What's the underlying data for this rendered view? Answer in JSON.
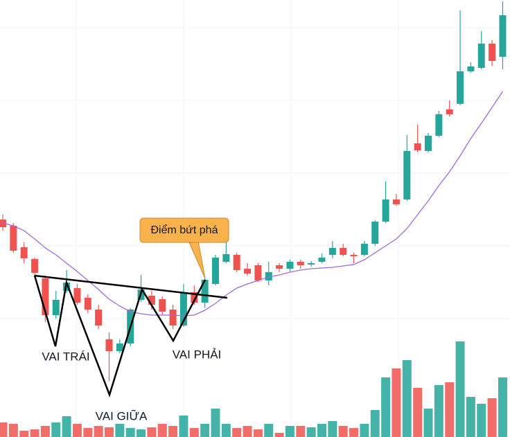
{
  "chart_data": {
    "type": "candlestick",
    "open": [
      314,
      305,
      274,
      257,
      229,
      176,
      211,
      215,
      201,
      184,
      141,
      124,
      135,
      198,
      204,
      199,
      184,
      161,
      209,
      194,
      221,
      253,
      263,
      243,
      248,
      226,
      248,
      243,
      253,
      249,
      253,
      263,
      273,
      263,
      263,
      279,
      311,
      343,
      343,
      424,
      413,
      435,
      473,
      481,
      528,
      533,
      568,
      549
    ],
    "high": [
      321,
      309,
      281,
      259,
      233,
      211,
      241,
      221,
      206,
      191,
      151,
      141,
      186,
      234,
      211,
      203,
      191,
      221,
      219,
      231,
      263,
      286,
      266,
      251,
      251,
      253,
      251,
      256,
      256,
      254,
      265,
      283,
      279,
      266,
      283,
      313,
      369,
      351,
      436,
      451,
      439,
      471,
      486,
      616,
      541,
      586,
      573,
      629
    ],
    "low": [
      298,
      266,
      251,
      233,
      166,
      171,
      208,
      191,
      179,
      156,
      81,
      121,
      131,
      195,
      184,
      176,
      156,
      159,
      191,
      186,
      219,
      251,
      238,
      233,
      224,
      219,
      238,
      239,
      243,
      246,
      251,
      258,
      261,
      251,
      261,
      276,
      309,
      334,
      341,
      411,
      411,
      433,
      463,
      479,
      526,
      531,
      536,
      531
    ],
    "close": [
      303,
      269,
      258,
      237,
      176,
      198,
      223,
      194,
      184,
      161,
      124,
      135,
      184,
      213,
      191,
      181,
      161,
      209,
      194,
      227,
      259,
      264,
      241,
      236,
      226,
      238,
      243,
      253,
      248,
      251,
      259,
      273,
      263,
      261,
      279,
      311,
      343,
      336,
      413,
      414,
      435,
      466,
      466,
      528,
      535,
      568,
      543,
      609
    ],
    "volume": [
      21,
      19,
      9,
      11,
      16,
      21,
      30,
      19,
      13,
      16,
      14,
      19,
      13,
      11,
      14,
      19,
      16,
      31,
      13,
      19,
      41,
      19,
      13,
      16,
      11,
      19,
      6,
      16,
      16,
      14,
      19,
      23,
      16,
      13,
      19,
      39,
      86,
      99,
      111,
      71,
      41,
      75,
      79,
      138,
      58,
      48,
      56,
      86
    ],
    "ma": [
      309,
      305,
      298,
      286,
      273,
      263,
      251,
      239,
      226,
      213,
      199,
      189,
      181,
      178,
      176,
      176,
      176,
      175,
      176,
      183,
      193,
      205,
      215,
      221,
      226,
      231,
      234,
      238,
      241,
      243,
      244,
      245,
      247,
      249,
      256,
      266,
      276,
      286,
      301,
      321,
      341,
      363,
      383,
      406,
      431,
      453,
      476,
      499
    ],
    "ylim": [
      0,
      631
    ],
    "y2lim": [
      0,
      631
    ],
    "up_color": "#26a69a",
    "down_color": "#ef5350",
    "ma_color": "#9c6ade",
    "annotations": [
      "VAI TRÁI",
      "VAI GIỮA",
      "VAI PHẢI",
      "Điểm bứt phá"
    ]
  }
}
